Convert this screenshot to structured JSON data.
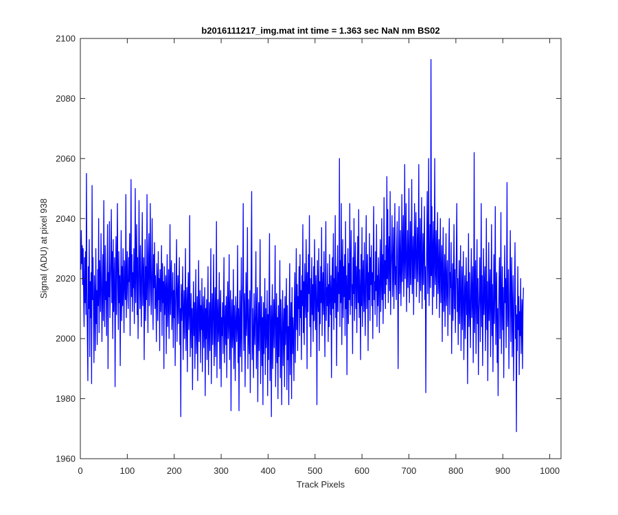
{
  "chart_data": {
    "type": "line",
    "title": "b2016111217_img.mat int time = 1.363 sec  NaN nm BS02",
    "xlabel": "Track Pixels",
    "ylabel": "Signal (ADU) at pixel 938",
    "xlim": [
      0,
      1024
    ],
    "ylim": [
      1960,
      2100
    ],
    "xticks": [
      0,
      100,
      200,
      300,
      400,
      500,
      600,
      700,
      800,
      900,
      1000
    ],
    "yticks": [
      1960,
      1980,
      2000,
      2020,
      2040,
      2060,
      2080,
      2100
    ],
    "grid": false,
    "series": [
      {
        "color": "#0000ff",
        "x_start": 1,
        "x_step": 1,
        "values": [
          2023,
          2036,
          2025,
          2031,
          2018,
          2030,
          2015,
          2004,
          2027,
          2012,
          2029,
          2008,
          2055,
          2017,
          2001,
          1986,
          2024,
          2010,
          2033,
          1994,
          2019,
          2007,
          2022,
          1985,
          2051,
          2013,
          2027,
          2009,
          1992,
          2021,
          2014,
          1996,
          2030,
          2005,
          2016,
          1998,
          2023,
          2011,
          2040,
          2002,
          2026,
          2019,
          2009,
          2035,
          2021,
          1999,
          2015,
          2028,
          2006,
          2046,
          2017,
          2004,
          2031,
          2013,
          2019,
          2001,
          2024,
          2038,
          1990,
          2022,
          2014,
          2039,
          2007,
          2018,
          2026,
          2043,
          2012,
          2029,
          2000,
          2033,
          2009,
          2020,
          2027,
          1984,
          2015,
          2034,
          2008,
          2025,
          2045,
          2016,
          2003,
          2029,
          2012,
          2021,
          1991,
          2018,
          2036,
          2006,
          2024,
          2011,
          2030,
          2017,
          2002,
          2026,
          2020,
          2013,
          2048,
          2007,
          2021,
          2029,
          2015,
          2010,
          2027,
          2019,
          2035,
          2001,
          2024,
          2053,
          2014,
          2028,
          2009,
          2022,
          2017,
          2030,
          2005,
          2020,
          2050,
          2012,
          2025,
          2038,
          2008,
          2027,
          2000,
          2016,
          2046,
          2023,
          2010,
          2031,
          2018,
          2004,
          2026,
          2042,
          2011,
          2020,
          2027,
          1993,
          2015,
          2033,
          2006,
          2024,
          2013,
          2048,
          2019,
          2002,
          2028,
          2035,
          2011,
          2021,
          2045,
          2016,
          2008,
          2024,
          2040,
          2013,
          2003,
          2028,
          2017,
          2032,
          2010,
          2021,
          2014,
          1999,
          2025,
          2018,
          2006,
          2029,
          2013,
          2020,
          1996,
          2023,
          2009,
          2016,
          2031,
          2001,
          2025,
          2012,
          2019,
          1990,
          2024,
          2008,
          2015,
          2021,
          1995,
          2017,
          2028,
          2004,
          2012,
          2023,
          2000,
          2014,
          2038,
          2008,
          2019,
          2026,
          2003,
          2011,
          2022,
          1997,
          2016,
          2007,
          2025,
          1991,
          2010,
          2018,
          2033,
          1999,
          2013,
          2021,
          2005,
          2015,
          2027,
          1998,
          2010,
          1974,
          2018,
          2006,
          2013,
          2024,
          1993,
          2008,
          2016,
          2000,
          2011,
          2030,
          1996,
          2007,
          2017,
          1989,
          2012,
          2022,
          2003,
          2009,
          2041,
          1994,
          2005,
          2015,
          1997,
          2010,
          1983,
          2006,
          2019,
          2001,
          2012,
          1990,
          2008,
          2023,
          1995,
          2004,
          2014,
          1986,
          2009,
          2026,
          1999,
          2006,
          2016,
          1992,
          2011,
          2003,
          2020,
          1989,
          2008,
          2014,
          1997,
          2005,
          2017,
          1981,
          2010,
          2000,
          2013,
          1993,
          2007,
          2024,
          1988,
          2003,
          2012,
          1996,
          2009,
          2030,
          1985,
          2005,
          2015,
          1998,
          2011,
          2028,
          1991,
          2003,
          2017,
          1994,
          2008,
          2039,
          1987,
          2006,
          2013,
          1999,
          2004,
          2022,
          1990,
          2009,
          2016,
          1984,
          2007,
          2001,
          2012,
          1995,
          2010,
          2027,
          1992,
          2003,
          2011,
          1998,
          2014,
          1987,
          2008,
          2019,
          2000,
          2005,
          2028,
          1993,
          2009,
          2016,
          1976,
          2006,
          2013,
          1997,
          2002,
          2023,
          1990,
          2011,
          2005,
          1986,
          2014,
          2009,
          1999,
          2004,
          2031,
          1992,
          2010,
          1976,
          2007,
          2016,
          1994,
          2003,
          2027,
          1989,
          2012,
          2018,
          2045,
          1996,
          2008,
          2015,
          1984,
          2005,
          2022,
          2001,
          2009,
          2037,
          1990,
          2013,
          2002,
          1995,
          2016,
          1982,
          2007,
          2024,
          2049,
          1993,
          2010,
          2001,
          1987,
          2015,
          2004,
          1998,
          2011,
          2029,
          1990,
          2006,
          2017,
          1979,
          2003,
          2012,
          1996,
          2009,
          2033,
          1985,
          2001,
          2014,
          1991,
          2007,
          1978,
          2012,
          1995,
          2004,
          2020,
          1988,
          2010,
          1997,
          2003,
          2016,
          1981,
          2008,
          1993,
          2014,
          2035,
          1986,
          2000,
          2011,
          1974,
          2006,
          2018,
          1990,
          2004,
          2013,
          1997,
          2009,
          2031,
          1984,
          2002,
          2015,
          1992,
          2007,
          1980,
          2011,
          1994,
          2005,
          2026,
          1987,
          2013,
          2001,
          1978,
          2008,
          2016,
          1991,
          2003,
          2010,
          1984,
          2014,
          1998,
          2006,
          2020,
          1983,
          2011,
          1993,
          2004,
          1978,
          2009,
          2025,
          1988,
          2002,
          2012,
          1980,
          2017,
          1995,
          2007,
          2001,
          1986,
          2013,
          2022,
          1992,
          2009,
          2030,
          2003,
          2018,
          1996,
          2014,
          2010,
          2024,
          2001,
          2028,
          2007,
          2016,
          1993,
          2021,
          2011,
          2038,
          2002,
          2019,
          1998,
          2025,
          2013,
          2007,
          2033,
          2017,
          1990,
          2022,
          2009,
          2028,
          2015,
          2041,
          2004,
          2020,
          1994,
          2012,
          2027,
          2008,
          2018,
          1999,
          2024,
          2006,
          2033,
          2015,
          2003,
          2021,
          2011,
          1978,
          2026,
          2014,
          2009,
          2030,
          1996,
          2019,
          2005,
          2024,
          2012,
          2037,
          2001,
          2016,
          2022,
          2008,
          2029,
          2013,
          1994,
          2020,
          2039,
          2006,
          2017,
          2011,
          2025,
          1999,
          2018,
          2004,
          2028,
          2014,
          2008,
          2021,
          1987,
          2016,
          2027,
          2010,
          2035,
          2003,
          2020,
          2012,
          2041,
          2007,
          2024,
          1991,
          2017,
          2031,
          2009,
          2022,
          2015,
          2060,
          2004,
          2026,
          2012,
          2045,
          1998,
          2019,
          2033,
          2007,
          2024,
          2014,
          2028,
          2001,
          2039,
          2010,
          2021,
          1988,
          2017,
          2030,
          2005,
          2025,
          2013,
          2045,
          2008,
          2022,
          2036,
          2011,
          2018,
          1995,
          2027,
          2015,
          2040,
          2006,
          2021,
          2032,
          2010,
          2024,
          2002,
          2019,
          2034,
          2012,
          2043,
          2007,
          2023,
          2016,
          1993,
          2028,
          2011,
          2037,
          2004,
          2020,
          2026,
          2009,
          2032,
          2014,
          2001,
          2024,
          2041,
          2010,
          2019,
          2028,
          1996,
          2022,
          2013,
          2035,
          2006,
          2027,
          2018,
          2031,
          2011,
          2022,
          2000,
          2025,
          2044,
          2013,
          2019,
          2008,
          2029,
          2016,
          2038,
          2004,
          2021,
          2011,
          2027,
          2018,
          2002,
          2024,
          2033,
          2009,
          2019,
          2040,
          2013,
          2028,
          2005,
          2022,
          2047,
          2015,
          2026,
          2010,
          2031,
          2018,
          2054,
          2020,
          2043,
          2012,
          2027,
          2034,
          2016,
          2049,
          2008,
          2023,
          2030,
          2041,
          2014,
          2022,
          2037,
          2010,
          2026,
          2045,
          2018,
          2024,
          2013,
          2032,
          2039,
          2020,
          1990,
          2028,
          2044,
          2015,
          2025,
          2036,
          2011,
          2023,
          2048,
          2019,
          2029,
          2041,
          2014,
          2026,
          2058,
          2020,
          2031,
          2045,
          2009,
          2024,
          2036,
          2017,
          2027,
          2050,
          2012,
          2022,
          2039,
          2018,
          2029,
          2053,
          2015,
          2024,
          2034,
          2008,
          2028,
          2045,
          2020,
          2031,
          2042,
          2014,
          2025,
          2037,
          2019,
          2030,
          2058,
          2012,
          2023,
          2040,
          2016,
          2027,
          2047,
          2010,
          2022,
          2035,
          2018,
          2029,
          2044,
          2013,
          2024,
          1982,
          2020,
          2031,
          2049,
          2015,
          2026,
          2060,
          2011,
          2023,
          2038,
          2017,
          2093,
          2021,
          2044,
          2008,
          2029,
          2039,
          2014,
          2026,
          2060,
          2018,
          2023,
          2036,
          2010,
          2028,
          2042,
          2015,
          2021,
          2033,
          2007,
          2025,
          2040,
          2012,
          2020,
          2031,
          1999,
          2024,
          2037,
          2009,
          2016,
          2028,
          2004,
          2021,
          2035,
          2011,
          2018,
          2026,
          2001,
          2014,
          2029,
          2040,
          2008,
          2022,
          2017,
          2032,
          1995,
          2013,
          2025,
          2006,
          2019,
          2038,
          2010,
          2023,
          2002,
          2016,
          2028,
          2045,
          2009,
          2020,
          1998,
          2014,
          2026,
          2005,
          2018,
          2031,
          1996,
          2012,
          2024,
          2003,
          2017,
          2029,
          1993,
          2010,
          2021,
          2000,
          2015,
          2027,
          2008,
          2019,
          1985,
          2013,
          2035,
          2004,
          2022,
          2011,
          1997,
          2017,
          2030,
          2007,
          2014,
          2024,
          1992,
          2010,
          2062,
          2002,
          2018,
          2026,
          1995,
          2012,
          2033,
          2005,
          2020,
          1988,
          2009,
          2016,
          2027,
          1999,
          2014,
          2045,
          2004,
          2021,
          1991,
          2011,
          2030,
          2008,
          2017,
          2024,
          1996,
          2013,
          2040,
          2003,
          2019,
          1986,
          2010,
          2032,
          2006,
          2015,
          2023,
          1994,
          2012,
          2038,
          2001,
          2018,
          1989,
          2009,
          2028,
          2005,
          2016,
          2044,
          1998,
          2013,
          2022,
          1992,
          2010,
          1981,
          2006,
          2019,
          2027,
          2000,
          2014,
          2042,
          1995,
          2011,
          2024,
          2003,
          2017,
          1987,
          2008,
          2031,
          2012,
          2020,
          1997,
          2015,
          2052,
          2004,
          2010,
          2023,
          1990,
          2007,
          2018,
          2036,
          1999,
          2013,
          2027,
          1994,
          2009,
          2021,
          1986,
          2005,
          2016,
          2032,
          2000,
          2011,
          1969,
          2008,
          1996,
          2024,
          2003,
          2014,
          1988,
          2009,
          2001,
          2020,
          1995,
          2006,
          2013,
          1990,
          2010,
          2017
        ]
      }
    ]
  }
}
